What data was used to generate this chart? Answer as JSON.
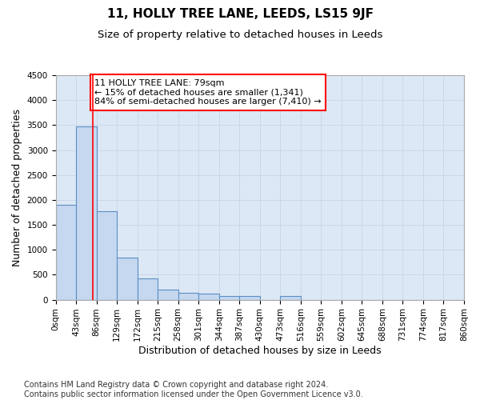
{
  "title": "11, HOLLY TREE LANE, LEEDS, LS15 9JF",
  "subtitle": "Size of property relative to detached houses in Leeds",
  "xlabel": "Distribution of detached houses by size in Leeds",
  "ylabel": "Number of detached properties",
  "footer_line1": "Contains HM Land Registry data © Crown copyright and database right 2024.",
  "footer_line2": "Contains public sector information licensed under the Open Government Licence v3.0.",
  "annotation_line1": "11 HOLLY TREE LANE: 79sqm",
  "annotation_line2": "← 15% of detached houses are smaller (1,341)",
  "annotation_line3": "84% of semi-detached houses are larger (7,410) →",
  "bar_edges": [
    0,
    43,
    86,
    129,
    172,
    215,
    258,
    301,
    344,
    387,
    430,
    473,
    516,
    559,
    602,
    645,
    688,
    731,
    774,
    817,
    860
  ],
  "bar_heights": [
    1900,
    3480,
    1780,
    840,
    420,
    200,
    140,
    115,
    80,
    70,
    0,
    75,
    0,
    0,
    0,
    0,
    0,
    0,
    0,
    0
  ],
  "bar_color": "#c5d8f0",
  "bar_edgecolor": "#5b8ec4",
  "property_line_x": 79,
  "property_line_color": "red",
  "annotation_box_color": "red",
  "ylim": [
    0,
    4500
  ],
  "xlim": [
    0,
    860
  ],
  "yticks": [
    0,
    500,
    1000,
    1500,
    2000,
    2500,
    3000,
    3500,
    4000,
    4500
  ],
  "xtick_labels": [
    "0sqm",
    "43sqm",
    "86sqm",
    "129sqm",
    "172sqm",
    "215sqm",
    "258sqm",
    "301sqm",
    "344sqm",
    "387sqm",
    "430sqm",
    "473sqm",
    "516sqm",
    "559sqm",
    "602sqm",
    "645sqm",
    "688sqm",
    "731sqm",
    "774sqm",
    "817sqm",
    "860sqm"
  ],
  "grid_color": "#c8d4e8",
  "bg_color": "#dce8f5",
  "title_fontsize": 11,
  "subtitle_fontsize": 9.5,
  "axis_label_fontsize": 9,
  "tick_fontsize": 7.5,
  "annotation_fontsize": 8,
  "footer_fontsize": 7
}
